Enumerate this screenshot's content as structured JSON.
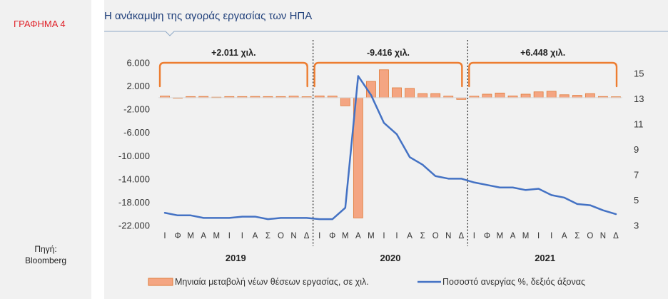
{
  "figure": {
    "label": "ΓΡΑΦΗΜΑ 4",
    "title": "Η ανάκαμψη της αγοράς εργασίας των ΗΠΑ",
    "source_line1": "Πηγή:",
    "source_line2": "Bloomberg"
  },
  "chart_data": {
    "type": "bar",
    "title": "Η ανάκαμψη της αγοράς εργασίας των ΗΠΑ",
    "categories": [
      "Ι",
      "Φ",
      "Μ",
      "Α",
      "Μ",
      "Ι",
      "Ι",
      "Α",
      "Σ",
      "Ο",
      "Ν",
      "Δ",
      "Ι",
      "Φ",
      "Μ",
      "Α",
      "Μ",
      "Ι",
      "Ι",
      "Α",
      "Σ",
      "Ο",
      "Ν",
      "Δ",
      "Ι",
      "Φ",
      "Μ",
      "Α",
      "Μ",
      "Ι",
      "Ι",
      "Α",
      "Σ",
      "Ο",
      "Ν",
      "Δ"
    ],
    "years": [
      "2019",
      "2020",
      "2021"
    ],
    "series": [
      {
        "name": "Μηνιαία μεταβολή νέων θέσεων εργασίας, σε χιλ.",
        "type": "bar",
        "axis": "left",
        "color": "#f4a582",
        "edge_color": "#e07b39",
        "values": [
          270,
          -20,
          190,
          210,
          85,
          190,
          190,
          210,
          190,
          190,
          260,
          160,
          300,
          270,
          -1400,
          -20700,
          2800,
          4800,
          1700,
          1600,
          700,
          700,
          260,
          -300,
          250,
          600,
          800,
          300,
          600,
          1000,
          1100,
          500,
          400,
          700,
          200,
          150
        ]
      },
      {
        "name": "Ποσοστό ανεργίας %, δεξιός άξονας",
        "type": "line",
        "axis": "right",
        "color": "#4472c4",
        "values": [
          4.0,
          3.8,
          3.8,
          3.6,
          3.6,
          3.6,
          3.7,
          3.7,
          3.5,
          3.6,
          3.6,
          3.6,
          3.5,
          3.5,
          4.4,
          14.8,
          13.3,
          11.1,
          10.2,
          8.4,
          7.8,
          6.9,
          6.7,
          6.7,
          6.4,
          6.2,
          6.0,
          6.0,
          5.8,
          5.9,
          5.4,
          5.2,
          4.7,
          4.6,
          4.2,
          3.9
        ]
      }
    ],
    "left_axis": {
      "ylim": [
        -22000,
        6000
      ],
      "ticks": [
        "6.000",
        "2.000",
        "-2.000",
        "-6.000",
        "-10.000",
        "-14.000",
        "-18.000",
        "-22.000"
      ]
    },
    "right_axis": {
      "ylim": [
        3,
        16
      ],
      "ticks": [
        "15",
        "13",
        "11",
        "9",
        "7",
        "5",
        "3"
      ]
    },
    "annotations": [
      "+2.011 χιλ.",
      "-9.416 χιλ.",
      "+6.448 χιλ."
    ],
    "legend_position": "bottom"
  }
}
